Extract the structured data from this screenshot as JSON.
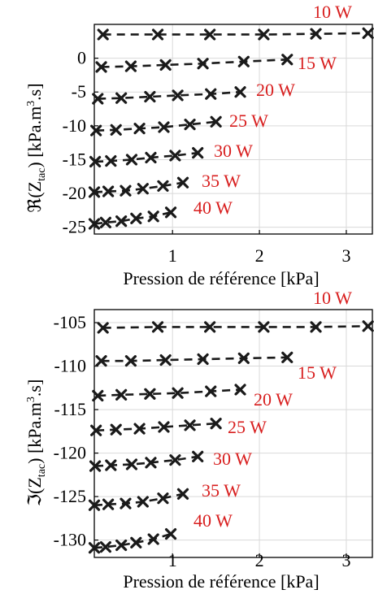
{
  "chart_data": [
    {
      "type": "line",
      "title": "",
      "xlabel": "Pression de référence [kPa]",
      "ylabel_main": "ℜ(Z",
      "ylabel_sub": "tac",
      "ylabel_rest": ") [kPa.m",
      "ylabel_sup": "3",
      "ylabel_end": ".s]",
      "xlim": [
        0.1,
        3.3
      ],
      "ylim": [
        -26,
        5
      ],
      "xticks": [
        1,
        2,
        3
      ],
      "xtick_labels": [
        "1",
        "2",
        "3"
      ],
      "yticks": [
        0,
        -5,
        -10,
        -15,
        -20,
        -25
      ],
      "ytick_labels": [
        "0",
        "-5",
        "-10",
        "-15",
        "-20",
        "-25"
      ],
      "grid": true,
      "series": [
        {
          "name": "10 W",
          "x": [
            0.2,
            0.83,
            1.43,
            2.05,
            2.65,
            3.25
          ],
          "y": [
            3.5,
            3.5,
            3.5,
            3.5,
            3.6,
            3.7
          ]
        },
        {
          "name": "15 W",
          "x": [
            0.18,
            0.52,
            0.92,
            1.35,
            1.82,
            2.32
          ],
          "y": [
            -1.3,
            -1.2,
            -1.0,
            -0.8,
            -0.5,
            -0.2
          ]
        },
        {
          "name": "20 W",
          "x": [
            0.14,
            0.41,
            0.74,
            1.06,
            1.44,
            1.78
          ],
          "y": [
            -6.0,
            -5.9,
            -5.7,
            -5.5,
            -5.3,
            -5.0
          ]
        },
        {
          "name": "25 W",
          "x": [
            0.12,
            0.35,
            0.62,
            0.9,
            1.2,
            1.5
          ],
          "y": [
            -10.7,
            -10.6,
            -10.4,
            -10.2,
            -9.8,
            -9.4
          ]
        },
        {
          "name": "30 W",
          "x": [
            0.11,
            0.29,
            0.53,
            0.75,
            1.03,
            1.29
          ],
          "y": [
            -15.3,
            -15.2,
            -15.0,
            -14.7,
            -14.4,
            -14.0
          ]
        },
        {
          "name": "35 W",
          "x": [
            0.1,
            0.26,
            0.46,
            0.66,
            0.89,
            1.12
          ],
          "y": [
            -19.8,
            -19.7,
            -19.6,
            -19.3,
            -18.9,
            -18.4
          ]
        },
        {
          "name": "40 W",
          "x": [
            0.1,
            0.23,
            0.41,
            0.58,
            0.78,
            0.98
          ],
          "y": [
            -24.5,
            -24.3,
            -24.1,
            -23.7,
            -23.4,
            -22.8
          ]
        }
      ]
    },
    {
      "type": "line",
      "title": "",
      "xlabel": "Pression de référence [kPa]",
      "ylabel_main": "ℑ(Z",
      "ylabel_sub": "tac",
      "ylabel_rest": ") [kPa.m",
      "ylabel_sup": "3",
      "ylabel_end": ".s]",
      "xlim": [
        0.1,
        3.3
      ],
      "ylim": [
        -132,
        -103.5
      ],
      "xticks": [
        1,
        2,
        3
      ],
      "xtick_labels": [
        "1",
        "2",
        "3"
      ],
      "yticks": [
        -105,
        -110,
        -115,
        -120,
        -125,
        -130
      ],
      "ytick_labels": [
        "-105",
        "-110",
        "-115",
        "-120",
        "-125",
        "-130"
      ],
      "grid": true,
      "series": [
        {
          "name": "10 W",
          "x": [
            0.2,
            0.83,
            1.43,
            2.05,
            2.65,
            3.25
          ],
          "y": [
            -105.6,
            -105.5,
            -105.5,
            -105.5,
            -105.5,
            -105.4
          ]
        },
        {
          "name": "15 W",
          "x": [
            0.18,
            0.52,
            0.92,
            1.35,
            1.82,
            2.32
          ],
          "y": [
            -109.4,
            -109.4,
            -109.3,
            -109.2,
            -109.1,
            -109.0
          ]
        },
        {
          "name": "20 W",
          "x": [
            0.14,
            0.41,
            0.74,
            1.06,
            1.44,
            1.78
          ],
          "y": [
            -113.4,
            -113.3,
            -113.2,
            -113.1,
            -112.9,
            -112.7
          ]
        },
        {
          "name": "25 W",
          "x": [
            0.12,
            0.35,
            0.62,
            0.9,
            1.2,
            1.5
          ],
          "y": [
            -117.4,
            -117.3,
            -117.2,
            -117.0,
            -116.8,
            -116.6
          ]
        },
        {
          "name": "30 W",
          "x": [
            0.11,
            0.29,
            0.53,
            0.75,
            1.03,
            1.29
          ],
          "y": [
            -121.5,
            -121.4,
            -121.3,
            -121.1,
            -120.8,
            -120.4
          ]
        },
        {
          "name": "35 W",
          "x": [
            0.1,
            0.26,
            0.46,
            0.66,
            0.89,
            1.12
          ],
          "y": [
            -126.0,
            -125.9,
            -125.8,
            -125.6,
            -125.2,
            -124.7
          ]
        },
        {
          "name": "40 W",
          "x": [
            0.1,
            0.23,
            0.41,
            0.58,
            0.78,
            0.98
          ],
          "y": [
            -130.9,
            -130.8,
            -130.6,
            -130.3,
            -129.9,
            -129.3
          ]
        }
      ]
    }
  ],
  "colors": {
    "label": "#d81e1e",
    "marker": "#1a1a1a",
    "grid": "#d9d9d9"
  }
}
